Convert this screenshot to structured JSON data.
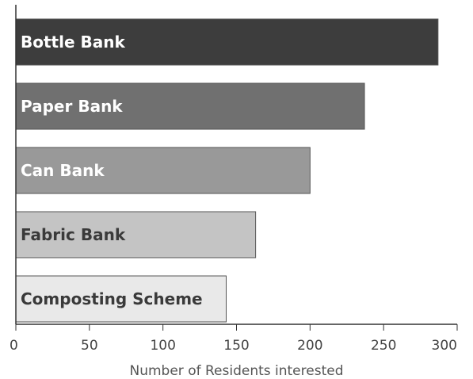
{
  "chart_data": {
    "type": "bar",
    "orientation": "horizontal",
    "categories": [
      "Bottle Bank",
      "Paper Bank",
      "Can Bank",
      "Fabric Bank",
      "Composting Scheme"
    ],
    "values": [
      287,
      237,
      200,
      163,
      143
    ],
    "xlabel": "Number of Residents interested",
    "xlim": [
      0,
      300
    ],
    "xticks": [
      "0",
      "50",
      "100",
      "150",
      "200",
      "250",
      "300"
    ],
    "grid": false,
    "colors": {
      "bars": [
        "#3d3d3d",
        "#707070",
        "#999999",
        "#c4c4c4",
        "#e9e9e9"
      ],
      "bar_labels": [
        "#ffffff",
        "#ffffff",
        "#ffffff",
        "#3a3a3a",
        "#3a3a3a"
      ],
      "axis": "#333333"
    }
  }
}
